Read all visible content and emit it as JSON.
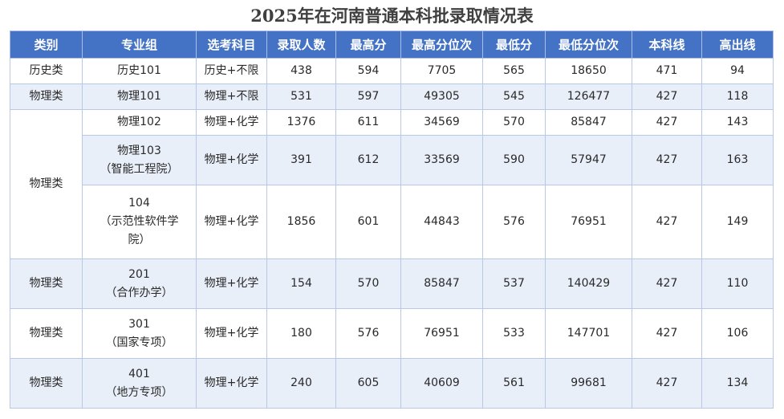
{
  "title": "2025年在河南普通本科批录取情况表",
  "headers": [
    "类别",
    "专业组",
    "选考科目",
    "录取人数",
    "最高分",
    "最高分位次",
    "最低分",
    "最低分位次",
    "本科线",
    "高出线"
  ],
  "rows": [
    {
      "category": "历史类",
      "group": [
        "历史101"
      ],
      "subjects": "历史+不限",
      "admitted": "438",
      "max_score": "594",
      "max_rank": "7705",
      "min_score": "565",
      "min_rank": "18650",
      "line": "471",
      "above": "94"
    },
    {
      "category": "物理类",
      "group": [
        "物理101"
      ],
      "subjects": "物理+不限",
      "admitted": "531",
      "max_score": "597",
      "max_rank": "49305",
      "min_score": "545",
      "min_rank": "126477",
      "line": "427",
      "above": "118"
    },
    {
      "category": "物理类",
      "group": [
        "物理102"
      ],
      "subjects": "物理+化学",
      "admitted": "1376",
      "max_score": "611",
      "max_rank": "34569",
      "min_score": "570",
      "min_rank": "85847",
      "line": "427",
      "above": "143"
    },
    {
      "category": "",
      "group": [
        "物理103",
        "（智能工程院）"
      ],
      "subjects": "物理+化学",
      "admitted": "391",
      "max_score": "612",
      "max_rank": "33569",
      "min_score": "590",
      "min_rank": "57947",
      "line": "427",
      "above": "163"
    },
    {
      "category": "",
      "group": [
        "104",
        "（示范性软件学",
        "院）"
      ],
      "subjects": "物理+化学",
      "admitted": "1856",
      "max_score": "601",
      "max_rank": "44843",
      "min_score": "576",
      "min_rank": "76951",
      "line": "427",
      "above": "149"
    },
    {
      "category": "物理类",
      "group": [
        "201",
        "（合作办学）"
      ],
      "subjects": "物理+化学",
      "admitted": "154",
      "max_score": "570",
      "max_rank": "85847",
      "min_score": "537",
      "min_rank": "140429",
      "line": "427",
      "above": "110"
    },
    {
      "category": "物理类",
      "group": [
        "301",
        "（国家专项）"
      ],
      "subjects": "物理+化学",
      "admitted": "180",
      "max_score": "576",
      "max_rank": "76951",
      "min_score": "533",
      "min_rank": "147701",
      "line": "427",
      "above": "106"
    },
    {
      "category": "物理类",
      "group": [
        "401",
        "（地方专项）"
      ],
      "subjects": "物理+化学",
      "admitted": "240",
      "max_score": "605",
      "max_rank": "40609",
      "min_score": "561",
      "min_rank": "99681",
      "line": "427",
      "above": "134"
    }
  ]
}
